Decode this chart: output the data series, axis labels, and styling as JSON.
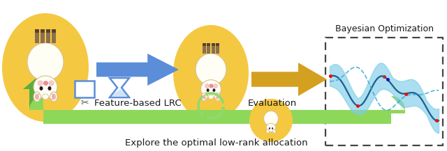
{
  "bg_color": "#ffffff",
  "ellipse_fill": "#F5C842",
  "ellipse_edge": "#D4A820",
  "arrow_blue": "#5B8DD9",
  "arrow_gold": "#D4A020",
  "arrow_green_dark": "#5BAD3C",
  "arrow_green_light": "#8DD85A",
  "cycle_green": "#90D870",
  "bo_fill": "#7DCDE8",
  "bo_line_dark": "#1A5F8A",
  "bo_line_light": "#3AA8D0",
  "dashed_box_color": "#444444",
  "text_color": "#1a1a1a",
  "label_lrc": "Feature-based LRC",
  "label_eval": "Evaluation",
  "label_bo": "Bayesian Optimization",
  "label_bottom": "Explore the optimal low-rank allocation",
  "fig_w": 6.4,
  "fig_h": 2.17,
  "dpi": 100
}
